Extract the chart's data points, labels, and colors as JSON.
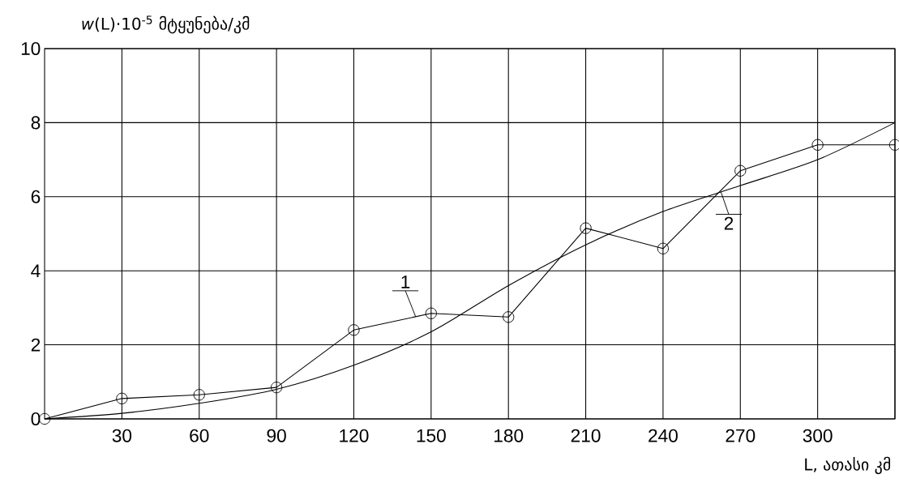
{
  "chart_data": {
    "type": "line",
    "xlabel": "L, ათასი კმ",
    "ylabel": "*w*(L)·10$^{-5}$ მტყუნება/კმ",
    "x": [
      0,
      30,
      60,
      90,
      120,
      150,
      180,
      210,
      240,
      270,
      300,
      330
    ],
    "series": [
      {
        "name": "1",
        "color": "#000000",
        "marker": "circle",
        "values": [
          0,
          0.55,
          0.65,
          0.85,
          2.4,
          2.85,
          2.75,
          5.15,
          4.6,
          6.7,
          7.4,
          7.4
        ]
      },
      {
        "name": "2",
        "color": "#000000",
        "marker": "none",
        "values": [
          0,
          0.15,
          0.42,
          0.8,
          1.45,
          2.35,
          3.6,
          4.7,
          5.6,
          6.3,
          7.0,
          8.0
        ]
      }
    ],
    "xlim": [
      0,
      330
    ],
    "ylim": [
      0,
      10
    ],
    "xticks": [
      30,
      60,
      90,
      120,
      150,
      180,
      210,
      240,
      270,
      300,
      {
        "value": 330,
        "label": null
      }
    ],
    "yticks": [
      0,
      2,
      4,
      6,
      8,
      10
    ],
    "grid": true,
    "line_style": "solid"
  }
}
